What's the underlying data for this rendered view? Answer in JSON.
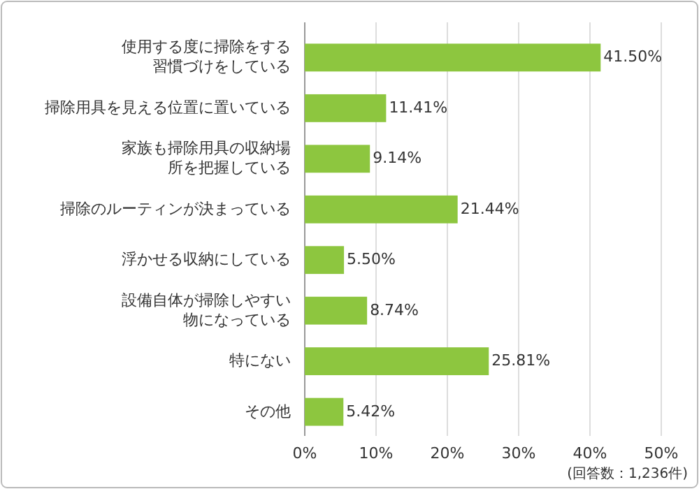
{
  "chart_data": {
    "type": "bar",
    "orientation": "horizontal",
    "categories": [
      "使用する度に掃除をする習慣づけをしている",
      "掃除用具を見える位置に置いている",
      "家族も掃除用具の収納場所を把握している",
      "掃除のルーティンが決まっている",
      "浮かせる収納にしている",
      "設備自体が掃除しやすい物になっている",
      "特にない",
      "その他"
    ],
    "values": [
      41.5,
      11.41,
      9.14,
      21.44,
      5.5,
      8.74,
      25.81,
      5.42
    ],
    "value_labels": [
      "41.50%",
      "11.41%",
      "9.14%",
      "21.44%",
      "5.50%",
      "8.74%",
      "25.81%",
      "5.42%"
    ],
    "color": "#8dc63f",
    "xlim": [
      0,
      50
    ],
    "xticks": [
      {
        "value": 0,
        "label": "0%"
      },
      {
        "value": 10,
        "label": "10%"
      },
      {
        "value": 20,
        "label": "20%"
      },
      {
        "value": 30,
        "label": "30%"
      },
      {
        "value": 40,
        "label": "40%"
      },
      {
        "value": 50,
        "label": "50%"
      }
    ],
    "grid": "x",
    "annotations": [
      "(回答数：1,236件)"
    ]
  }
}
